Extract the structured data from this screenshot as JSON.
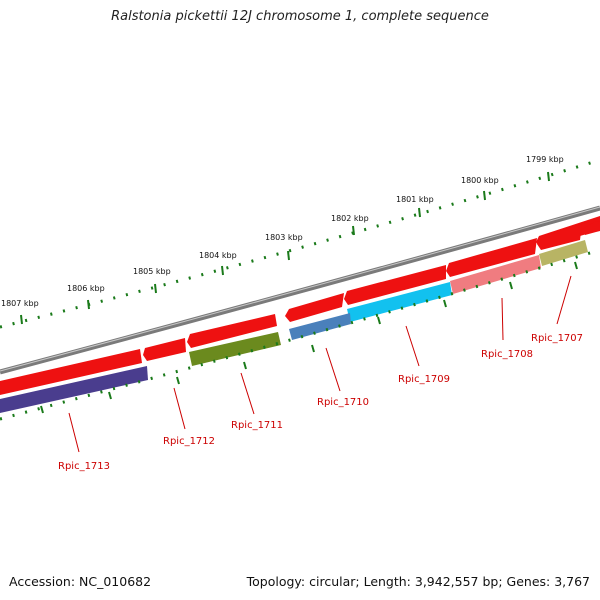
{
  "title": "Ralstonia pickettii 12J chromosome 1, complete sequence",
  "accession": "Accession: NC_010682",
  "summary": "Topology: circular; Length: 3,942,557 bp; Genes: 3,767",
  "scale_labels": [
    "1799 kbp",
    "1800 kbp",
    "1801 kbp",
    "1802 kbp",
    "1803 kbp",
    "1804 kbp",
    "1805 kbp",
    "1806 kbp",
    "1807 kbp"
  ],
  "genes": [
    {
      "name": "Rpic_1707",
      "color": "#b8b464"
    },
    {
      "name": "Rpic_1708",
      "color": "#f07c80"
    },
    {
      "name": "Rpic_1709",
      "color": "#12c1ef"
    },
    {
      "name": "Rpic_1710",
      "color": "#4a80bb"
    },
    {
      "name": "Rpic_1711",
      "color": "#6b8a1e"
    },
    {
      "name": "Rpic_1712",
      "color": "#ee1111"
    },
    {
      "name": "Rpic_1713",
      "color": "#4a3d8e"
    }
  ],
  "colors": {
    "backbone": "#7a7a7a",
    "forward_strand": "#ee1111",
    "tick": "#1a7a1a",
    "gene_label": "#cc0000"
  }
}
